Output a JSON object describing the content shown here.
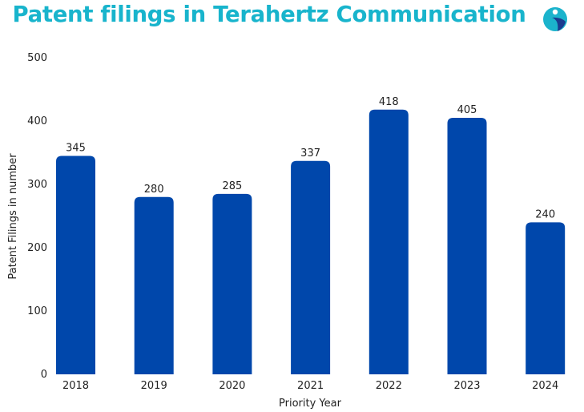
{
  "colors": {
    "title": "#18b4cc",
    "bar": "#0047ab",
    "logo_teal": "#1bb3cc",
    "logo_navy": "#1a3b8f"
  },
  "logo": {
    "icon": "brand-logo-icon"
  },
  "chart_data": {
    "type": "bar",
    "title": "Patent filings in Terahertz Communication",
    "xlabel": "Priority Year",
    "ylabel": "Patent Filings in number",
    "categories": [
      "2018",
      "2019",
      "2020",
      "2021",
      "2022",
      "2023",
      "2024"
    ],
    "values": [
      345,
      280,
      285,
      337,
      418,
      405,
      240
    ],
    "ylim": [
      0,
      500
    ],
    "yticks": [
      0,
      100,
      200,
      300,
      400,
      500
    ],
    "grid": false,
    "legend": false
  }
}
